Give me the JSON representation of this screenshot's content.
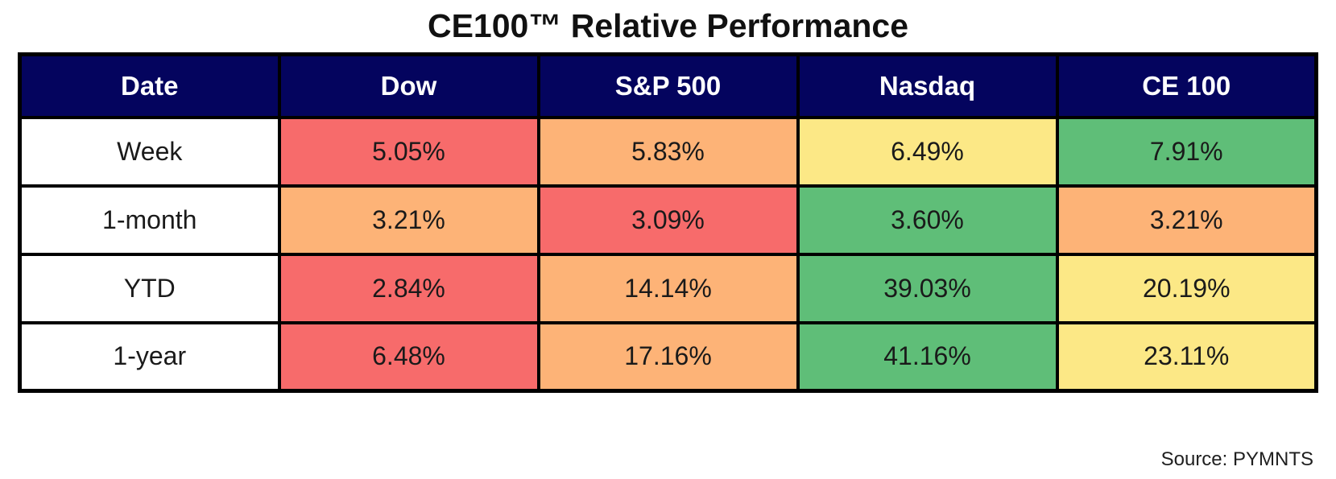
{
  "title": "CE100™ Relative Performance",
  "source": "Source: PYMNTS",
  "colors": {
    "navy": "#04045E",
    "red": "#F76B6B",
    "orange": "#FDB377",
    "yellow": "#FCE886",
    "green": "#5FBE78",
    "header_text": "#FFFFFF",
    "body_text": "#1A1A1A",
    "border": "#000000"
  },
  "table": {
    "headers": [
      "Date",
      "Dow",
      "S&P 500",
      "Nasdaq",
      "CE 100"
    ],
    "rows": [
      {
        "label": "Week",
        "cells": [
          {
            "value": "5.05%",
            "color": "red"
          },
          {
            "value": "5.83%",
            "color": "orange"
          },
          {
            "value": "6.49%",
            "color": "yellow"
          },
          {
            "value": "7.91%",
            "color": "green"
          }
        ]
      },
      {
        "label": "1-month",
        "cells": [
          {
            "value": "3.21%",
            "color": "orange"
          },
          {
            "value": "3.09%",
            "color": "red"
          },
          {
            "value": "3.60%",
            "color": "green"
          },
          {
            "value": "3.21%",
            "color": "orange"
          }
        ]
      },
      {
        "label": "YTD",
        "cells": [
          {
            "value": "2.84%",
            "color": "red"
          },
          {
            "value": "14.14%",
            "color": "orange"
          },
          {
            "value": "39.03%",
            "color": "green"
          },
          {
            "value": "20.19%",
            "color": "yellow"
          }
        ]
      },
      {
        "label": "1-year",
        "cells": [
          {
            "value": "6.48%",
            "color": "red"
          },
          {
            "value": "17.16%",
            "color": "orange"
          },
          {
            "value": "41.16%",
            "color": "green"
          },
          {
            "value": "23.11%",
            "color": "yellow"
          }
        ]
      }
    ]
  },
  "chart_data": {
    "type": "table",
    "title": "CE100™ Relative Performance",
    "columns": [
      "Date",
      "Dow",
      "S&P 500",
      "Nasdaq",
      "CE 100"
    ],
    "rows": [
      [
        "Week",
        5.05,
        5.83,
        6.49,
        7.91
      ],
      [
        "1-month",
        3.21,
        3.09,
        3.6,
        3.21
      ],
      [
        "YTD",
        2.84,
        14.14,
        39.03,
        20.19
      ],
      [
        "1-year",
        6.48,
        17.16,
        41.16,
        23.11
      ]
    ],
    "units": "%",
    "cell_color_scale": "red (lowest) -> orange -> yellow -> green (highest) relative performance per row",
    "source": "Source: PYMNTS"
  }
}
